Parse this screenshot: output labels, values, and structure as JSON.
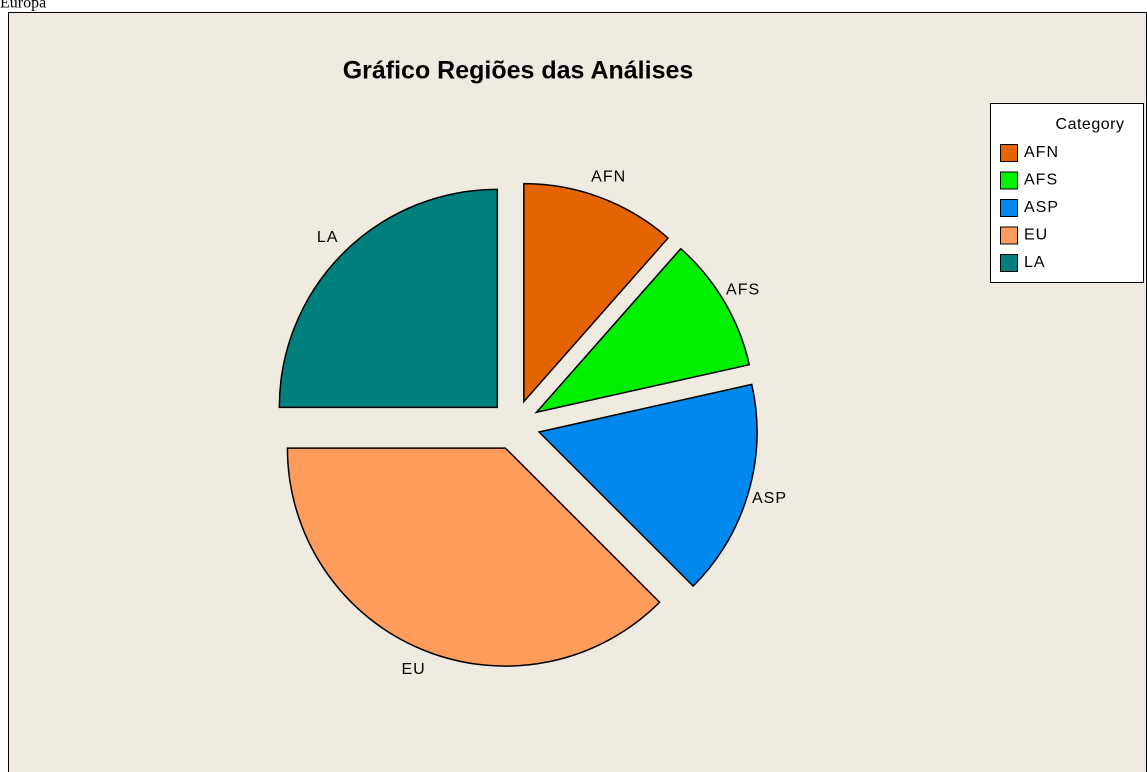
{
  "caption": "Europa",
  "chart_data": {
    "type": "pie",
    "title": "Gráfico Regiões das Análises",
    "legend_title": "Category",
    "categories": [
      "AFN",
      "AFS",
      "ASP",
      "EU",
      "LA"
    ],
    "values": [
      11.5,
      10,
      16,
      37.5,
      25
    ],
    "colors": [
      "#e66400",
      "#00f000",
      "#0088ee",
      "#ff9c5c",
      "#007f7f"
    ],
    "legend": "top-right",
    "exploded": true
  }
}
